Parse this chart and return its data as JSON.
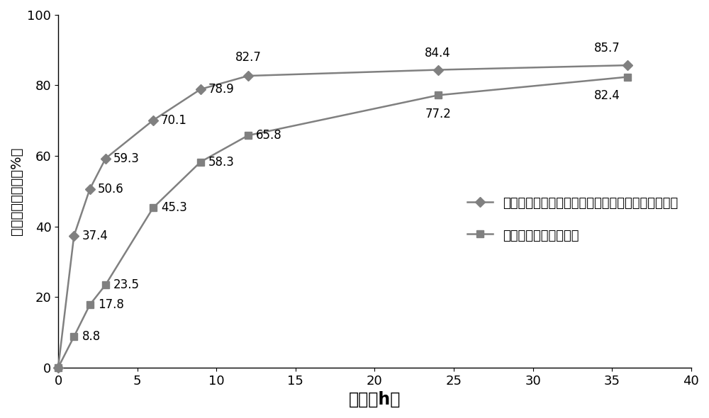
{
  "series1": {
    "label": "紫杉醇靶向脂质体（未添加星型胆酸功能化聚乳酸）",
    "x": [
      0,
      1,
      2,
      3,
      6,
      9,
      12,
      24,
      36
    ],
    "y": [
      0,
      37.4,
      50.6,
      59.3,
      70.1,
      78.9,
      82.7,
      84.4,
      85.7
    ],
    "color": "#808080",
    "marker": "D",
    "markersize": 7,
    "linewidth": 1.8
  },
  "series2": {
    "label": "紫杉醇靶向缓释脂质体",
    "x": [
      0,
      1,
      2,
      3,
      6,
      9,
      12,
      24,
      36
    ],
    "y": [
      0,
      8.8,
      17.8,
      23.5,
      45.3,
      58.3,
      65.8,
      77.2,
      82.4
    ],
    "color": "#808080",
    "marker": "s",
    "markersize": 7,
    "linewidth": 1.8
  },
  "xlabel": "时间（h）",
  "ylabel": "累积释药百分率（%）",
  "xlim": [
    0,
    40
  ],
  "ylim": [
    0,
    100
  ],
  "xticks": [
    0,
    5,
    10,
    15,
    20,
    25,
    30,
    35,
    40
  ],
  "yticks": [
    0,
    20,
    40,
    60,
    80,
    100
  ],
  "background_color": "#ffffff",
  "xlabel_fontsize": 17,
  "ylabel_fontsize": 14,
  "tick_fontsize": 13,
  "legend_fontsize": 13,
  "annotation_fontsize": 12,
  "series1_annotations": {
    "labels": [
      "37.4",
      "50.6",
      "59.3",
      "70.1",
      "78.9",
      "82.7",
      "84.4",
      "85.7"
    ],
    "x": [
      1,
      2,
      3,
      6,
      9,
      12,
      24,
      36
    ],
    "y": [
      37.4,
      50.6,
      59.3,
      70.1,
      78.9,
      82.7,
      84.4,
      85.7
    ],
    "ha": [
      "left",
      "left",
      "left",
      "left",
      "left",
      "center",
      "center",
      "right"
    ],
    "va": [
      "center",
      "center",
      "center",
      "center",
      "center",
      "bottom",
      "bottom",
      "bottom"
    ],
    "dx": [
      0.5,
      0.5,
      0.5,
      0.5,
      0.5,
      0.0,
      0.0,
      -0.5
    ],
    "dy": [
      0.0,
      0.0,
      0.0,
      0.0,
      0.0,
      3.5,
      3.0,
      3.0
    ]
  },
  "series2_annotations": {
    "labels": [
      "8.8",
      "17.8",
      "23.5",
      "45.3",
      "58.3",
      "65.8",
      "77.2",
      "82.4"
    ],
    "x": [
      1,
      2,
      3,
      6,
      9,
      12,
      24,
      36
    ],
    "y": [
      8.8,
      17.8,
      23.5,
      45.3,
      58.3,
      65.8,
      77.2,
      82.4
    ],
    "ha": [
      "left",
      "left",
      "left",
      "left",
      "left",
      "left",
      "center",
      "right"
    ],
    "va": [
      "center",
      "center",
      "center",
      "center",
      "center",
      "center",
      "top",
      "top"
    ],
    "dx": [
      0.5,
      0.5,
      0.5,
      0.5,
      0.5,
      0.5,
      0.0,
      -0.5
    ],
    "dy": [
      0.0,
      0.0,
      0.0,
      0.0,
      0.0,
      0.0,
      -3.5,
      -3.5
    ]
  }
}
